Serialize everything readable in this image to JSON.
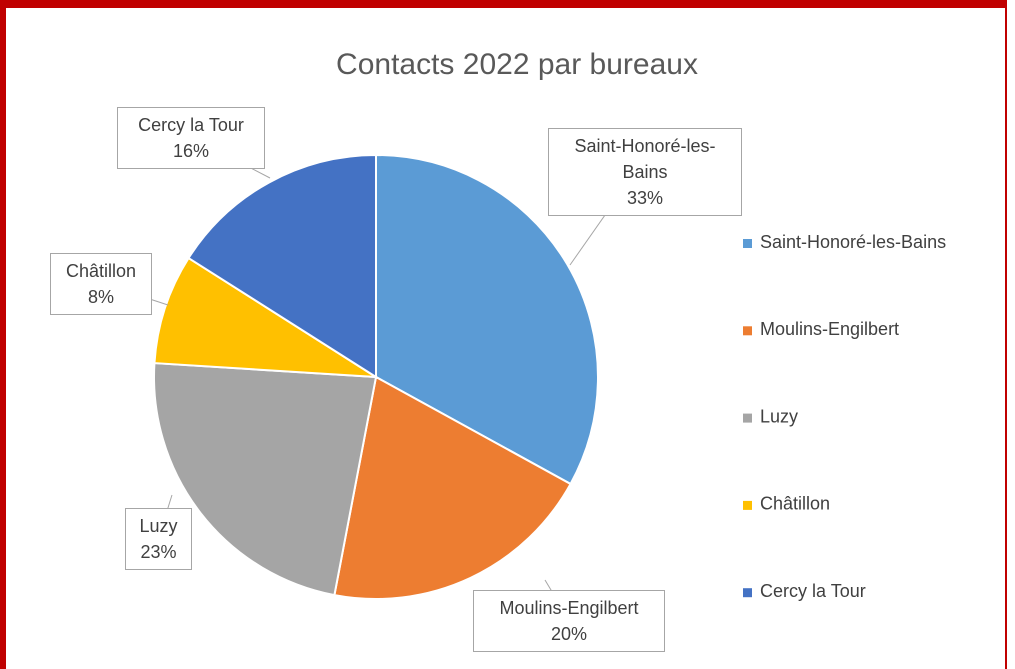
{
  "chart_data": {
    "type": "pie",
    "title": "Contacts 2022 par bureaux",
    "categories": [
      "Saint-Honoré-les-Bains",
      "Moulins-Engilbert",
      "Luzy",
      "Châtillon",
      "Cercy la Tour"
    ],
    "values": [
      33,
      20,
      23,
      8,
      16
    ],
    "value_labels": [
      "33%",
      "20%",
      "23%",
      "8%",
      "16%"
    ],
    "colors": [
      "#5b9bd5",
      "#ed7d31",
      "#a5a5a5",
      "#ffc000",
      "#4472c4"
    ],
    "legend": "right"
  }
}
